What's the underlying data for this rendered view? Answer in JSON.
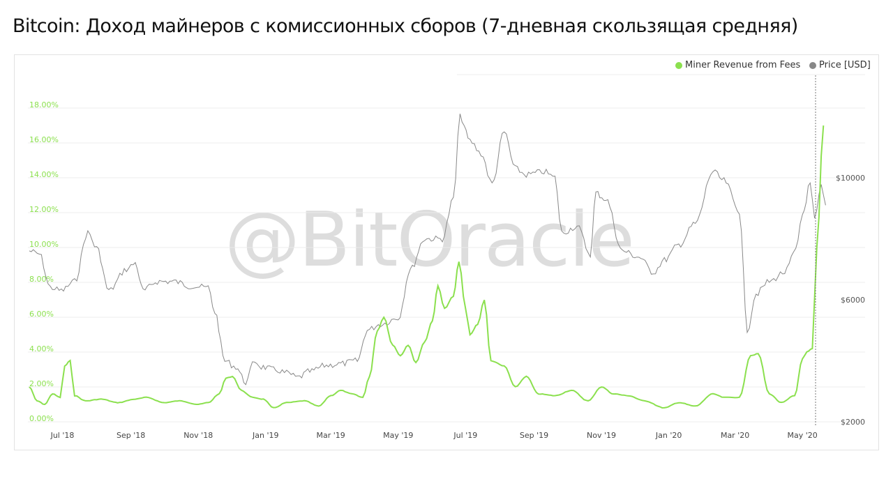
{
  "title": "Bitcoin: Доход майнеров с комиссионных сборов (7-дневная скользящая средняя)",
  "watermark": "@BitOracle",
  "colors": {
    "fees": "#8be04e",
    "price": "#888888",
    "grid": "#ececec",
    "axis_left": "#8be04e",
    "axis_right": "#555555"
  },
  "chart_data": {
    "type": "line",
    "legend_position": "top-right",
    "grid": true,
    "x_ticks": [
      "Jul '18",
      "Sep '18",
      "Nov '18",
      "Jan '19",
      "Mar '19",
      "May '19",
      "Jul '19",
      "Sep '19",
      "Nov '19",
      "Jan '20",
      "Mar '20",
      "May '20"
    ],
    "y_left": {
      "ticks": [
        "0.00%",
        "2.00%",
        "4.00%",
        "6.00%",
        "8.00%",
        "10.00%",
        "12.00%",
        "14.00%",
        "16.00%",
        "18.00%"
      ],
      "range": [
        0,
        18
      ]
    },
    "y_right": {
      "ticks": [
        "$2000",
        "$6000",
        "$10000"
      ],
      "range_approx": [
        2000,
        13000
      ]
    },
    "series": [
      {
        "name": "Miner Revenue from Fees",
        "axis": "left",
        "unit": "%",
        "points": [
          [
            "2018-06-01",
            2.0
          ],
          [
            "2018-06-08",
            1.2
          ],
          [
            "2018-06-15",
            1.0
          ],
          [
            "2018-06-22",
            1.6
          ],
          [
            "2018-06-29",
            1.4
          ],
          [
            "2018-07-03",
            3.2
          ],
          [
            "2018-07-08",
            3.5
          ],
          [
            "2018-07-12",
            1.5
          ],
          [
            "2018-07-22",
            1.2
          ],
          [
            "2018-08-05",
            1.3
          ],
          [
            "2018-08-20",
            1.1
          ],
          [
            "2018-09-05",
            1.3
          ],
          [
            "2018-09-15",
            1.4
          ],
          [
            "2018-10-01",
            1.1
          ],
          [
            "2018-10-15",
            1.2
          ],
          [
            "2018-11-01",
            1.0
          ],
          [
            "2018-11-10",
            1.1
          ],
          [
            "2018-11-20",
            1.6
          ],
          [
            "2018-11-26",
            2.5
          ],
          [
            "2018-12-02",
            2.6
          ],
          [
            "2018-12-10",
            1.8
          ],
          [
            "2018-12-20",
            1.4
          ],
          [
            "2018-12-30",
            1.3
          ],
          [
            "2019-01-08",
            0.8
          ],
          [
            "2019-01-20",
            1.1
          ],
          [
            "2019-02-05",
            1.2
          ],
          [
            "2019-02-18",
            0.9
          ],
          [
            "2019-03-01",
            1.5
          ],
          [
            "2019-03-10",
            1.8
          ],
          [
            "2019-03-20",
            1.6
          ],
          [
            "2019-03-30",
            1.4
          ],
          [
            "2019-04-05",
            2.6
          ],
          [
            "2019-04-12",
            5.2
          ],
          [
            "2019-04-18",
            6.0
          ],
          [
            "2019-04-26",
            4.4
          ],
          [
            "2019-05-03",
            3.8
          ],
          [
            "2019-05-10",
            4.4
          ],
          [
            "2019-05-17",
            3.4
          ],
          [
            "2019-05-25",
            4.6
          ],
          [
            "2019-06-01",
            5.8
          ],
          [
            "2019-06-06",
            7.8
          ],
          [
            "2019-06-12",
            6.5
          ],
          [
            "2019-06-20",
            7.2
          ],
          [
            "2019-06-25",
            9.2
          ],
          [
            "2019-07-01",
            6.5
          ],
          [
            "2019-07-05",
            5.0
          ],
          [
            "2019-07-12",
            5.6
          ],
          [
            "2019-07-18",
            7.0
          ],
          [
            "2019-07-24",
            3.5
          ],
          [
            "2019-08-05",
            3.2
          ],
          [
            "2019-08-15",
            2.0
          ],
          [
            "2019-08-25",
            2.6
          ],
          [
            "2019-09-05",
            1.6
          ],
          [
            "2019-09-20",
            1.5
          ],
          [
            "2019-10-05",
            1.8
          ],
          [
            "2019-10-20",
            1.2
          ],
          [
            "2019-11-01",
            2.0
          ],
          [
            "2019-11-12",
            1.6
          ],
          [
            "2019-11-25",
            1.5
          ],
          [
            "2019-12-10",
            1.2
          ],
          [
            "2019-12-28",
            0.8
          ],
          [
            "2020-01-10",
            1.1
          ],
          [
            "2020-01-25",
            0.9
          ],
          [
            "2020-02-10",
            1.6
          ],
          [
            "2020-02-20",
            1.4
          ],
          [
            "2020-03-05",
            1.4
          ],
          [
            "2020-03-15",
            3.8
          ],
          [
            "2020-03-22",
            3.9
          ],
          [
            "2020-04-01",
            1.6
          ],
          [
            "2020-04-12",
            1.1
          ],
          [
            "2020-04-24",
            1.5
          ],
          [
            "2020-05-01",
            3.6
          ],
          [
            "2020-05-05",
            4.0
          ],
          [
            "2020-05-10",
            4.2
          ],
          [
            "2020-05-14",
            10.0
          ],
          [
            "2020-05-20",
            17.0
          ]
        ]
      },
      {
        "name": "Price [USD]",
        "axis": "right",
        "unit": "USD",
        "points": [
          [
            "2018-06-01",
            7600
          ],
          [
            "2018-06-10",
            7500
          ],
          [
            "2018-06-20",
            6400
          ],
          [
            "2018-06-30",
            6300
          ],
          [
            "2018-07-12",
            6600
          ],
          [
            "2018-07-24",
            8200
          ],
          [
            "2018-08-01",
            7700
          ],
          [
            "2018-08-12",
            6300
          ],
          [
            "2018-08-28",
            7000
          ],
          [
            "2018-09-05",
            7200
          ],
          [
            "2018-09-12",
            6300
          ],
          [
            "2018-09-25",
            6600
          ],
          [
            "2018-10-10",
            6600
          ],
          [
            "2018-10-25",
            6450
          ],
          [
            "2018-11-10",
            6400
          ],
          [
            "2018-11-16",
            5600
          ],
          [
            "2018-11-25",
            4000
          ],
          [
            "2018-12-05",
            3800
          ],
          [
            "2018-12-14",
            3300
          ],
          [
            "2018-12-22",
            4000
          ],
          [
            "2018-12-28",
            3800
          ],
          [
            "2019-01-10",
            3700
          ],
          [
            "2019-01-20",
            3600
          ],
          [
            "2019-01-30",
            3450
          ],
          [
            "2019-02-10",
            3650
          ],
          [
            "2019-02-25",
            3850
          ],
          [
            "2019-03-10",
            3900
          ],
          [
            "2019-03-25",
            4000
          ],
          [
            "2019-04-03",
            5000
          ],
          [
            "2019-04-15",
            5200
          ],
          [
            "2019-05-01",
            5400
          ],
          [
            "2019-05-12",
            7000
          ],
          [
            "2019-05-25",
            8000
          ],
          [
            "2019-06-10",
            8000
          ],
          [
            "2019-06-20",
            9300
          ],
          [
            "2019-06-26",
            12000
          ],
          [
            "2019-07-05",
            11200
          ],
          [
            "2019-07-15",
            10800
          ],
          [
            "2019-07-25",
            9800
          ],
          [
            "2019-08-05",
            11500
          ],
          [
            "2019-08-15",
            10300
          ],
          [
            "2019-08-25",
            10100
          ],
          [
            "2019-09-10",
            10200
          ],
          [
            "2019-09-20",
            10000
          ],
          [
            "2019-09-26",
            8200
          ],
          [
            "2019-10-10",
            8400
          ],
          [
            "2019-10-22",
            7500
          ],
          [
            "2019-10-27",
            9500
          ],
          [
            "2019-11-05",
            9300
          ],
          [
            "2019-11-20",
            7600
          ],
          [
            "2019-12-05",
            7400
          ],
          [
            "2019-12-18",
            6900
          ],
          [
            "2019-12-28",
            7300
          ],
          [
            "2020-01-10",
            7800
          ],
          [
            "2020-01-25",
            8500
          ],
          [
            "2020-02-10",
            10200
          ],
          [
            "2020-02-20",
            9900
          ],
          [
            "2020-03-05",
            8900
          ],
          [
            "2020-03-12",
            5000
          ],
          [
            "2020-03-20",
            6200
          ],
          [
            "2020-04-01",
            6600
          ],
          [
            "2020-04-15",
            6900
          ],
          [
            "2020-04-25",
            7600
          ],
          [
            "2020-05-01",
            8800
          ],
          [
            "2020-05-08",
            9800
          ],
          [
            "2020-05-12",
            8600
          ],
          [
            "2020-05-18",
            9700
          ],
          [
            "2020-05-22",
            9100
          ]
        ]
      }
    ]
  }
}
